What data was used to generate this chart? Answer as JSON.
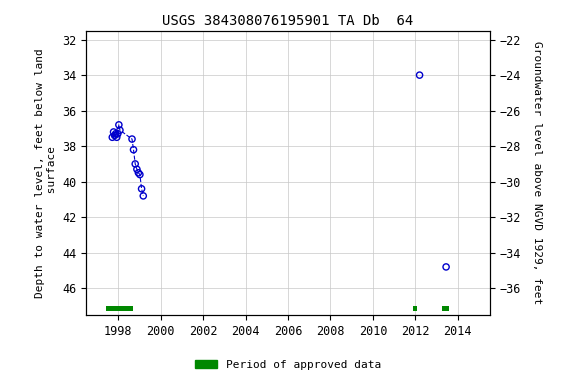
{
  "title": "USGS 384308076195901 TA Db  64",
  "ylabel_left": "Depth to water level, feet below land\n surface",
  "ylabel_right": "Groundwater level above NGVD 1929, feet",
  "xlim": [
    1996.5,
    2015.5
  ],
  "ylim_left": [
    47.5,
    31.5
  ],
  "ylim_right": [
    -37.5,
    -21.5
  ],
  "xticks": [
    1998,
    2000,
    2002,
    2004,
    2006,
    2008,
    2010,
    2012,
    2014
  ],
  "yticks_left": [
    32,
    34,
    36,
    38,
    40,
    42,
    44,
    46
  ],
  "yticks_right": [
    -22,
    -24,
    -26,
    -28,
    -30,
    -32,
    -34,
    -36
  ],
  "scatter_x": [
    1997.72,
    1997.78,
    1997.83,
    1997.88,
    1997.93,
    1997.98,
    1998.03,
    1998.08,
    1998.65,
    1998.72,
    1998.8,
    1998.88,
    1998.95,
    1999.02,
    1999.1,
    1999.18,
    2012.2,
    2013.45
  ],
  "scatter_y": [
    37.5,
    37.2,
    37.4,
    37.3,
    37.5,
    37.3,
    36.8,
    37.1,
    37.6,
    38.2,
    39.0,
    39.3,
    39.5,
    39.6,
    40.4,
    40.8,
    34.0,
    44.8
  ],
  "line_x": [
    1997.72,
    1997.78,
    1997.83,
    1997.88,
    1997.93,
    1997.98,
    1998.03,
    1998.08,
    1998.65,
    1998.72,
    1998.8,
    1998.88,
    1998.95,
    1999.02,
    1999.1,
    1999.18
  ],
  "line_y": [
    37.5,
    37.2,
    37.4,
    37.3,
    37.5,
    37.3,
    36.8,
    37.1,
    37.6,
    38.2,
    39.0,
    39.3,
    39.5,
    39.6,
    40.4,
    40.8
  ],
  "marker_color": "#0000cc",
  "line_color": "#0000cc",
  "line_style": "--",
  "background_color": "#ffffff",
  "grid_color": "#c8c8c8",
  "bar_periods": [
    {
      "xstart": 1997.42,
      "xend": 1998.7,
      "color": "#008800"
    },
    {
      "xstart": 2011.88,
      "xend": 2012.08,
      "color": "#008800"
    },
    {
      "xstart": 2013.25,
      "xend": 2013.58,
      "color": "#008800"
    }
  ],
  "bar_y": 47.15,
  "bar_height": 0.3,
  "legend_label": "Period of approved data",
  "legend_color": "#008800",
  "title_fontsize": 10,
  "axis_fontsize": 8,
  "tick_fontsize": 8.5,
  "font_family": "monospace"
}
